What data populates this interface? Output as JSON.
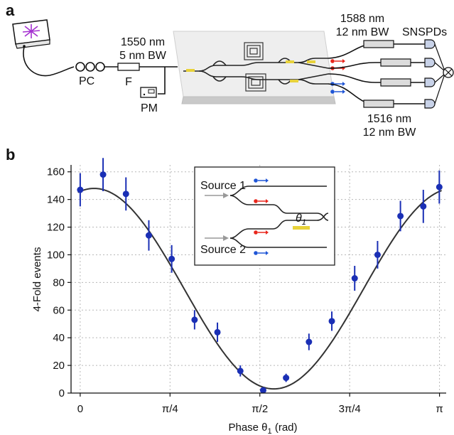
{
  "panel_a": {
    "letter": "a",
    "pc_label": "PC",
    "filter_label": "F",
    "pump_wavelength": "1550 nm",
    "pump_bandwidth": "5 nm BW",
    "pm_label": "PM",
    "signal_wavelength": "1588 nm",
    "signal_bandwidth": "12 nm BW",
    "detector_label": "SNSPDs",
    "idler_wavelength": "1516 nm",
    "idler_bandwidth": "12 nm BW",
    "colors": {
      "signal": "#e8261c",
      "idler": "#1f55d6",
      "heater": "#e8d23a"
    }
  },
  "panel_b": {
    "letter": "b",
    "inset": {
      "source1_label": "Source 1",
      "source2_label": "Source 2",
      "phase_symbol": "θ",
      "phase_subscript": "1"
    }
  },
  "chart_data": {
    "type": "scatter",
    "xlabel_main": "Phase θ",
    "xlabel_sub": "1",
    "xlabel_unit": " (rad)",
    "ylabel": "4-Fold events",
    "xlim": [
      -0.08,
      3.2
    ],
    "ylim": [
      0,
      165
    ],
    "grid": true,
    "x_ticks": [
      {
        "value": 0,
        "label": "0"
      },
      {
        "value": 0.7854,
        "label": "π/4"
      },
      {
        "value": 1.5708,
        "label": "π/2"
      },
      {
        "value": 2.3562,
        "label": "3π/4"
      },
      {
        "value": 3.1416,
        "label": "π"
      }
    ],
    "y_ticks": [
      0,
      20,
      40,
      60,
      80,
      100,
      120,
      140,
      160
    ],
    "series": [
      {
        "marker_color": "#1a2fb5",
        "points": [
          {
            "x": 0.0,
            "y": 147,
            "err": 12
          },
          {
            "x": 0.2,
            "y": 158,
            "err": 12
          },
          {
            "x": 0.4,
            "y": 144,
            "err": 12
          },
          {
            "x": 0.6,
            "y": 114,
            "err": 11
          },
          {
            "x": 0.8,
            "y": 97,
            "err": 10
          },
          {
            "x": 1.0,
            "y": 53,
            "err": 7
          },
          {
            "x": 1.2,
            "y": 44,
            "err": 7
          },
          {
            "x": 1.4,
            "y": 16,
            "err": 4
          },
          {
            "x": 1.6,
            "y": 2,
            "err": 2
          },
          {
            "x": 1.8,
            "y": 11,
            "err": 3
          },
          {
            "x": 2.0,
            "y": 37,
            "err": 6
          },
          {
            "x": 2.2,
            "y": 52,
            "err": 7
          },
          {
            "x": 2.4,
            "y": 83,
            "err": 9
          },
          {
            "x": 2.6,
            "y": 100,
            "err": 10
          },
          {
            "x": 2.8,
            "y": 128,
            "err": 11
          },
          {
            "x": 3.0,
            "y": 135,
            "err": 12
          },
          {
            "x": 3.14,
            "y": 149,
            "err": 12
          }
        ]
      }
    ],
    "fit": {
      "color": "#333333",
      "amplitude": 72.5,
      "offset": 75.5,
      "frequency": 2,
      "phase": 0.245
    }
  }
}
